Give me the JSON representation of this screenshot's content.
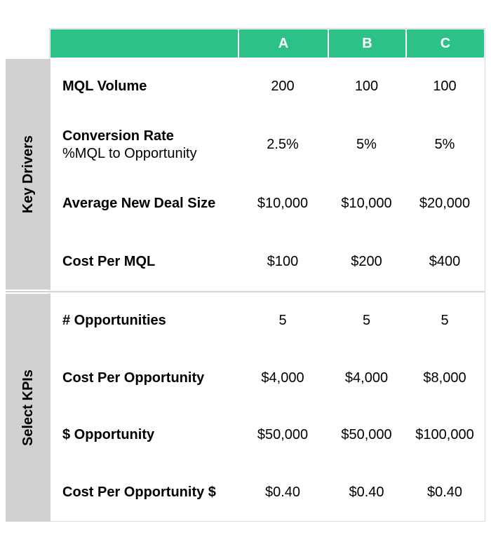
{
  "colors": {
    "header_green": "#2bc187",
    "sidebar_gray": "#d1d1d1",
    "header_text": "#ffffff",
    "body_text": "#000000"
  },
  "chart_data": {
    "type": "table",
    "columns": [
      "A",
      "B",
      "C"
    ],
    "row_groups": [
      {
        "group": "Key Drivers",
        "rows": [
          {
            "label": "MQL Volume",
            "values": [
              "200",
              "100",
              "100"
            ]
          },
          {
            "label": "Conversion Rate",
            "sublabel": "%MQL to Opportunity",
            "values": [
              "2.5%",
              "5%",
              "5%"
            ]
          },
          {
            "label": "Average New Deal Size",
            "values": [
              "$10,000",
              "$10,000",
              "$20,000"
            ]
          },
          {
            "label": "Cost Per MQL",
            "values": [
              "$100",
              "$200",
              "$400"
            ]
          }
        ]
      },
      {
        "group": "Select KPIs",
        "rows": [
          {
            "label": "# Opportunities",
            "values": [
              "5",
              "5",
              "5"
            ]
          },
          {
            "label": "Cost Per Opportunity",
            "values": [
              "$4,000",
              "$4,000",
              "$8,000"
            ]
          },
          {
            "label": "$ Opportunity",
            "values": [
              "$50,000",
              "$50,000",
              "$100,000"
            ]
          },
          {
            "label": "Cost Per Opportunity $",
            "values": [
              "$0.40",
              "$0.40",
              "$0.40"
            ]
          }
        ]
      }
    ]
  }
}
